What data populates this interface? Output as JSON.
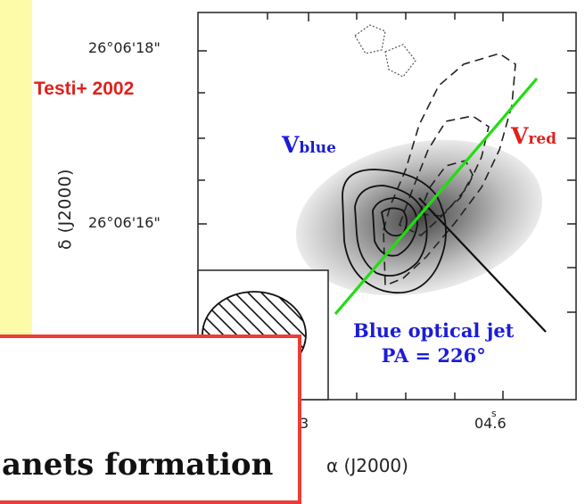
{
  "reference": "Testi+ 2002",
  "axes": {
    "dec_label": "δ (J2000)",
    "dec_ticks": [
      "26°06'18\"",
      "26°06'16\""
    ],
    "ra_label": "α (J2000)",
    "ra_ticks": [
      "3",
      "04.6"
    ],
    "ra_tick_superscript": "s"
  },
  "labels": {
    "v_blue_main": "V",
    "v_blue_sub": "blue",
    "v_red_main": "V",
    "v_red_sub": "red",
    "jet_line1": "Blue optical jet",
    "jet_line2": "PA = 226°"
  },
  "overlay": {
    "text": "anets formation"
  },
  "colors": {
    "reference": "#e0201c",
    "blue_label": "#1c1cd8",
    "red_label": "#e0201c",
    "green_line": "#22dd11",
    "overlay_border": "#ee3b35",
    "strip": "#fdfba8"
  }
}
